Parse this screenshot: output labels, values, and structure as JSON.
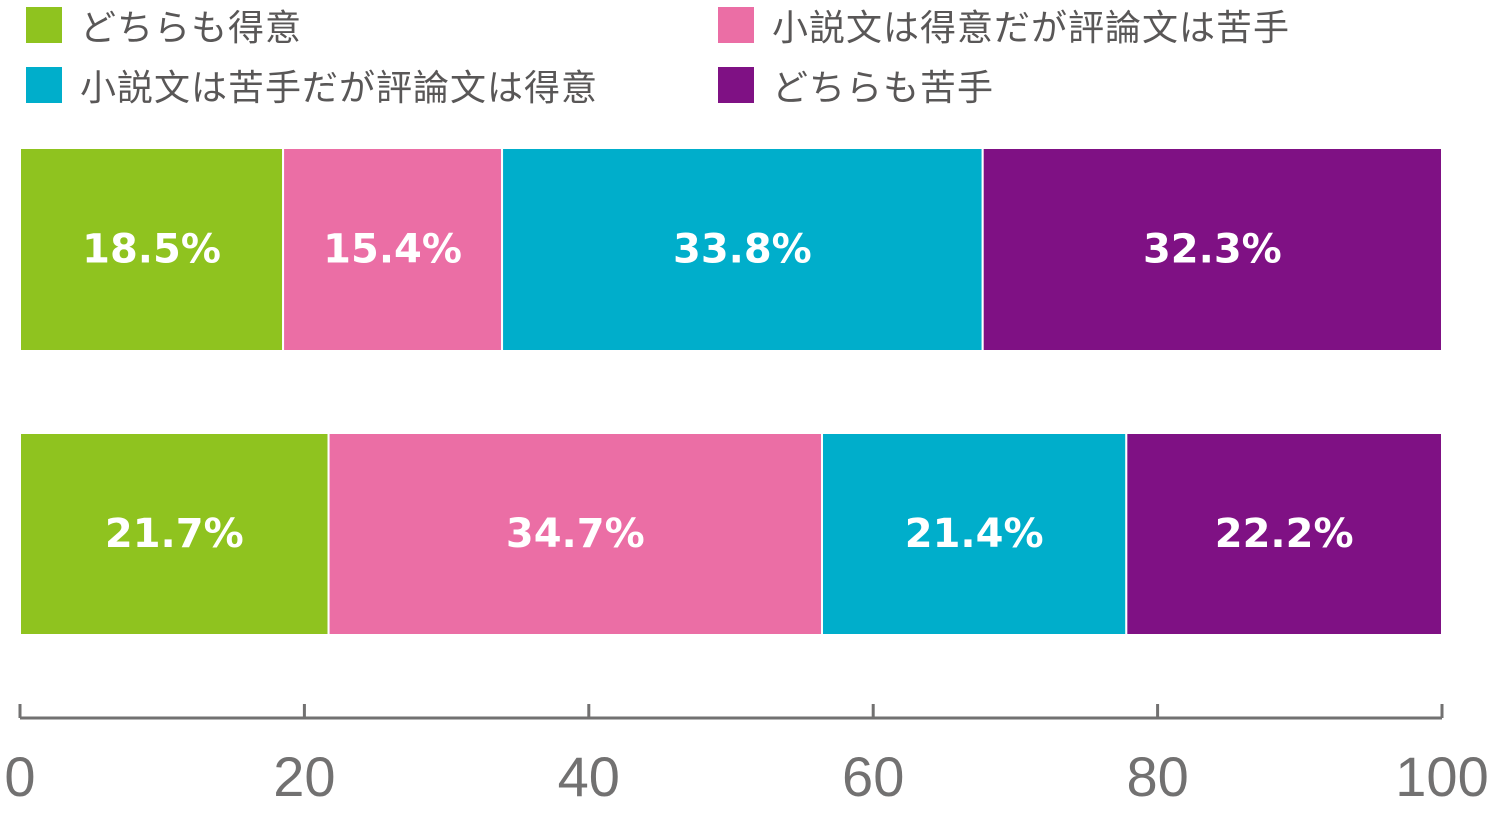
{
  "chart_data": {
    "type": "bar",
    "orientation": "horizontal",
    "stacked": true,
    "categories": [
      "",
      ""
    ],
    "series": [
      {
        "name": "どちらも得意",
        "values": [
          18.5,
          21.7
        ],
        "color": "#8fc31f"
      },
      {
        "name": "小説文は得意だが評論文は苦手",
        "values": [
          15.4,
          34.7
        ],
        "color": "#eb6ea5"
      },
      {
        "name": "小説文は苦手だが評論文は得意",
        "values": [
          33.8,
          21.4
        ],
        "color": "#00aecb"
      },
      {
        "name": "どちらも苦手",
        "values": [
          32.3,
          22.2
        ],
        "color": "#7f1184"
      }
    ],
    "value_labels": [
      [
        "18.5%",
        "15.4%",
        "33.8%",
        "32.3%"
      ],
      [
        "21.7%",
        "34.7%",
        "21.4%",
        "22.2%"
      ]
    ],
    "xlim": [
      0,
      100
    ],
    "xticks": [
      0,
      20,
      40,
      60,
      80,
      100
    ],
    "xtick_labels": [
      "0",
      "20",
      "40",
      "60",
      "80",
      "100"
    ],
    "grid": false,
    "legend_position": "top"
  }
}
